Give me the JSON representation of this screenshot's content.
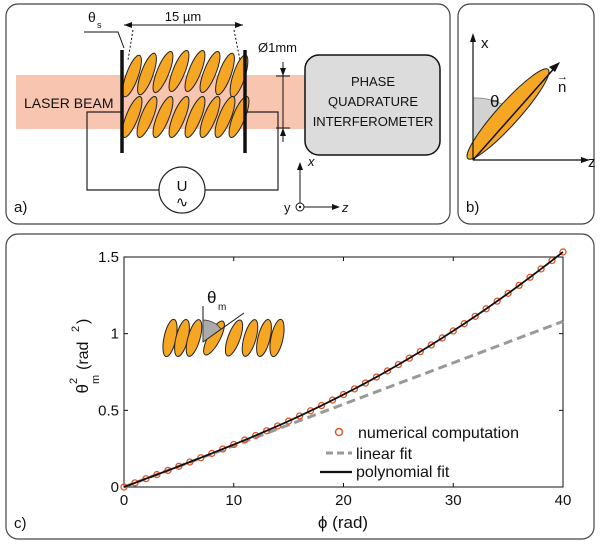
{
  "panel_a": {
    "label": "a)",
    "theta_s": "θ",
    "theta_s_sub": "s",
    "gap": "15 µm",
    "diameter": "Ø1mm",
    "laser": "LASER BEAM",
    "box_lines": [
      "PHASE",
      "QUADRATURE",
      "INTERFEROMETER"
    ],
    "voltage": "U",
    "ac": "∿",
    "axis_x": "x",
    "axis_y": "y",
    "axis_z": "z"
  },
  "panel_b": {
    "label": "b)",
    "axis_x": "x",
    "axis_z": "z",
    "theta": "θ",
    "n": "n",
    "n_arrow": "→"
  },
  "panel_c": {
    "label": "c)",
    "inset_theta": "θ",
    "inset_sub": "m"
  },
  "colors": {
    "lc": "#f5a623",
    "laser": "#f7c5b0",
    "data": "#e2552b",
    "linear": "#999999",
    "poly": "#111111"
  },
  "chart_data": {
    "type": "line",
    "xlabel": "ϕ (rad)",
    "ylabel": "θ²m (rad²)",
    "ylabel_parts": {
      "theta": "θ",
      "sup": "2",
      "sub": "m",
      "unit": "(rad",
      "unit_sup": "2",
      "unit_close": ")"
    },
    "xlim": [
      0,
      40
    ],
    "ylim": [
      0,
      1.5
    ],
    "xticks": [
      "0",
      "10",
      "20",
      "30",
      "40"
    ],
    "yticks": [
      "0",
      "0.5",
      "1",
      "1.5"
    ],
    "legend_position": "bottom-right",
    "series": [
      {
        "name": "numerical computation",
        "style": "circles",
        "x": [
          0,
          1,
          2,
          3,
          4,
          5,
          6,
          7,
          8,
          9,
          10,
          11,
          12,
          13,
          14,
          15,
          16,
          17,
          18,
          19,
          20,
          21,
          22,
          23,
          24,
          25,
          26,
          27,
          28,
          29,
          30,
          31,
          32,
          33,
          34,
          35,
          36,
          37,
          38,
          39,
          40
        ],
        "y": [
          0,
          0.027,
          0.054,
          0.081,
          0.108,
          0.135,
          0.163,
          0.191,
          0.219,
          0.248,
          0.277,
          0.306,
          0.336,
          0.367,
          0.398,
          0.43,
          0.463,
          0.497,
          0.531,
          0.567,
          0.603,
          0.64,
          0.678,
          0.717,
          0.757,
          0.798,
          0.84,
          0.883,
          0.927,
          0.972,
          1.018,
          1.065,
          1.113,
          1.162,
          1.212,
          1.263,
          1.315,
          1.368,
          1.422,
          1.477,
          1.533
        ]
      },
      {
        "name": "linear fit",
        "style": "dashed",
        "x": [
          0,
          40
        ],
        "y": [
          0,
          1.08
        ]
      },
      {
        "name": "polynomial fit",
        "style": "solid",
        "x": [
          0,
          5,
          10,
          15,
          20,
          25,
          30,
          35,
          40
        ],
        "y": [
          0,
          0.135,
          0.277,
          0.43,
          0.603,
          0.798,
          1.018,
          1.263,
          1.533
        ]
      }
    ]
  }
}
